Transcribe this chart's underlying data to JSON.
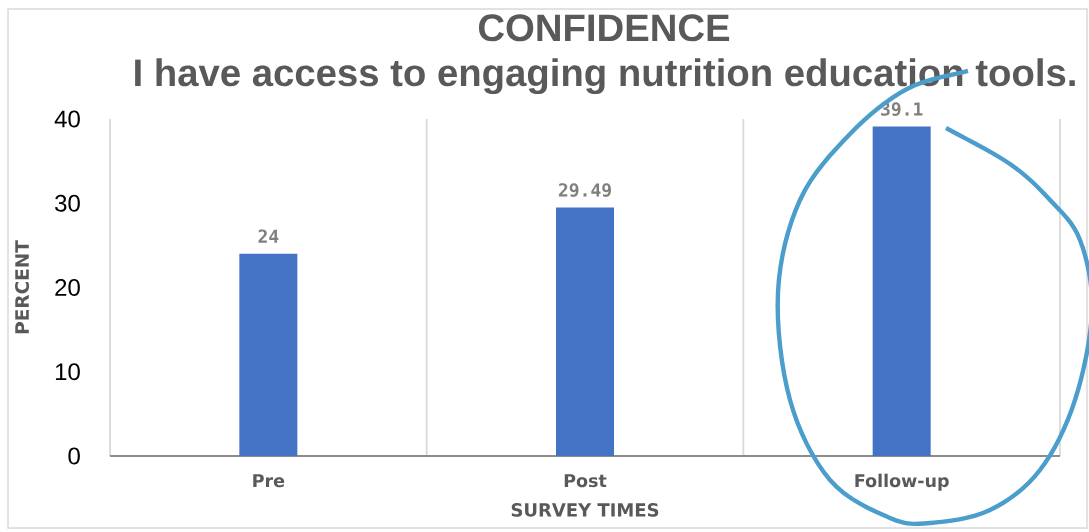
{
  "chart_data": {
    "type": "bar",
    "title": "CONFIDENCE",
    "subtitle": "I have access to engaging nutrition education tools.",
    "xlabel": "SURVEY TIMES",
    "ylabel": "PERCENT",
    "categories": [
      "Pre",
      "Post",
      "Follow-up"
    ],
    "values": [
      24,
      29.49,
      39.1
    ],
    "color": "#4472c4",
    "ylim": [
      0,
      40
    ],
    "yticks": [
      0,
      10,
      20,
      30,
      40
    ],
    "grid": "x",
    "data_labels": true
  }
}
